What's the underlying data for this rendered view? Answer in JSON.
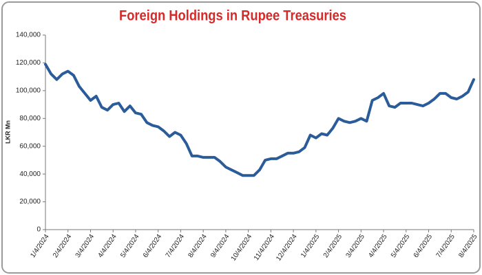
{
  "chart_data": {
    "type": "line",
    "title": "Foreign Holdings in Rupee Treasuries",
    "y_label": "LKR Mn",
    "categories": [
      "1/4/2024",
      null,
      null,
      null,
      "2/4/2024",
      null,
      null,
      null,
      "3/4/2024",
      null,
      null,
      null,
      "4/4/2024",
      null,
      null,
      null,
      "5/4/2024",
      null,
      null,
      null,
      "6/4/2024",
      null,
      null,
      null,
      "7/4/2024",
      null,
      null,
      null,
      "8/4/2024",
      null,
      null,
      null,
      "9/4/2024",
      null,
      null,
      null,
      "10/4/2024",
      null,
      null,
      null,
      "11/4/2024",
      null,
      null,
      null,
      "12/4/2024",
      null,
      null,
      null,
      "1/4/2025",
      null,
      null,
      null,
      "2/4/2025",
      null,
      null,
      null,
      "3/4/2025",
      null,
      null,
      null,
      "4/4/2025",
      null,
      null,
      null,
      "5/4/2025",
      null,
      null,
      null,
      "6/4/2025",
      null,
      null,
      null,
      "7/4/2025",
      null,
      null,
      null,
      "8/4/2025"
    ],
    "values": [
      119000,
      112000,
      108000,
      112000,
      114000,
      111000,
      103000,
      98000,
      93000,
      96000,
      88000,
      86000,
      90000,
      91000,
      85000,
      89000,
      84000,
      83000,
      77000,
      75000,
      74000,
      71000,
      67000,
      70000,
      68000,
      62000,
      53000,
      53000,
      52000,
      52000,
      52000,
      49000,
      45000,
      43000,
      41000,
      39000,
      39000,
      39000,
      43000,
      50000,
      51000,
      51000,
      53000,
      55000,
      55000,
      56000,
      59000,
      68000,
      66000,
      69000,
      68000,
      73000,
      80000,
      78000,
      77000,
      78000,
      80000,
      78000,
      93000,
      95000,
      98000,
      89000,
      88000,
      91000,
      91000,
      91000,
      90000,
      89000,
      91000,
      94000,
      98000,
      98000,
      95000,
      94000,
      96000,
      99000,
      108000
    ],
    "color": "#2b5c9a",
    "ylim": [
      0,
      140000
    ],
    "yticks": [
      0,
      {
        "value": 20000,
        "label": "20,000"
      },
      {
        "value": 40000,
        "label": "40,000"
      },
      {
        "value": 60000,
        "label": "60,000"
      },
      {
        "value": 80000,
        "label": "80,000"
      },
      {
        "value": 100000,
        "label": "100,000"
      },
      {
        "value": 120000,
        "label": "120,000"
      },
      {
        "value": 140000,
        "label": "140,000"
      }
    ],
    "grid": false
  }
}
